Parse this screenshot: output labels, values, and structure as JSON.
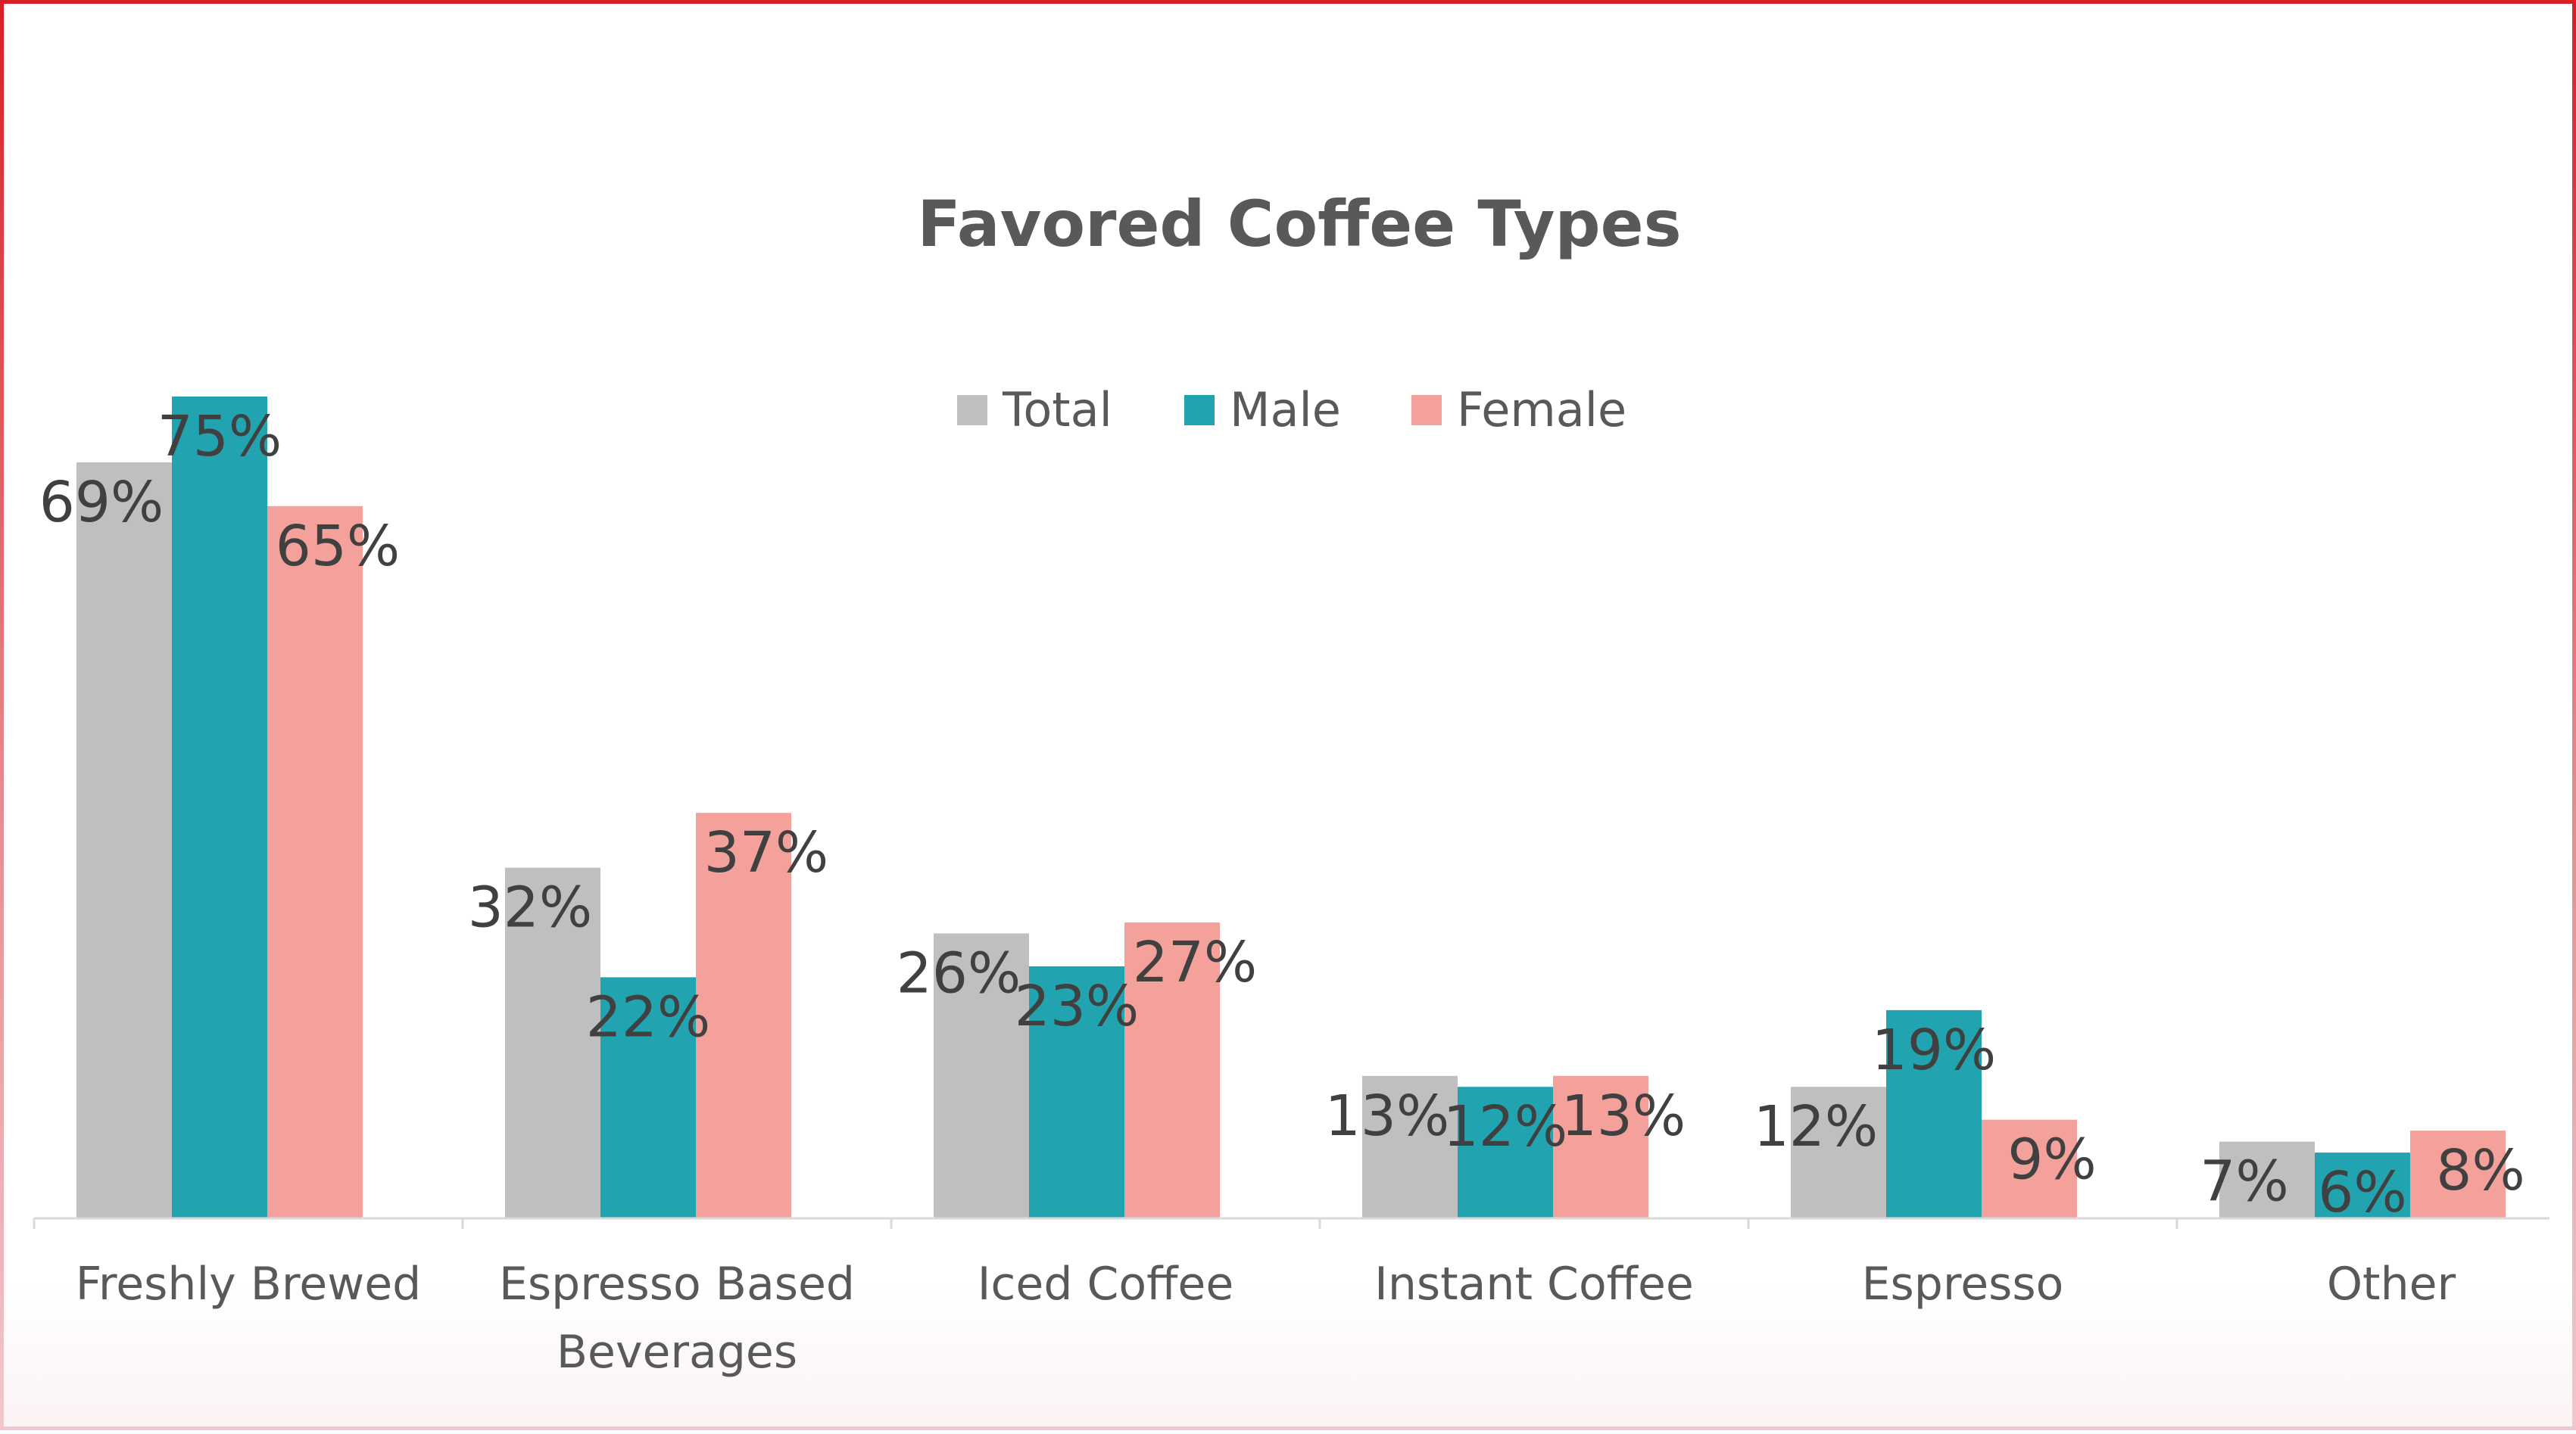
{
  "chart_data": {
    "type": "bar",
    "title": "Favored Coffee Types",
    "xlabel": "",
    "ylabel": "",
    "ylim": [
      0,
      80
    ],
    "grid": false,
    "legend_position": "top-center",
    "categories": [
      [
        "Freshly Brewed"
      ],
      [
        "Espresso Based",
        "Beverages"
      ],
      [
        "Iced Coffee"
      ],
      [
        "Instant Coffee"
      ],
      [
        "Espresso"
      ],
      [
        "Other"
      ]
    ],
    "series": [
      {
        "name": "Total",
        "color": "#bfbfbf",
        "values": [
          69,
          32,
          26,
          13,
          12,
          7
        ],
        "labels": [
          "69%",
          "32%",
          "26%",
          "13%",
          "12%",
          "7%"
        ]
      },
      {
        "name": "Male",
        "color": "#22a3b0",
        "values": [
          75,
          22,
          23,
          12,
          19,
          6
        ],
        "labels": [
          "75%",
          "22%",
          "23%",
          "12%",
          "19%",
          "6%"
        ]
      },
      {
        "name": "Female",
        "color": "#f4a19b",
        "values": [
          65,
          37,
          27,
          13,
          9,
          8
        ],
        "labels": [
          "65%",
          "37%",
          "27%",
          "13%",
          "9%",
          "8%"
        ]
      }
    ]
  }
}
